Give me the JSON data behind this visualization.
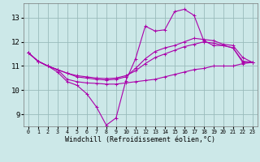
{
  "background_color": "#cce8e8",
  "line_color": "#aa00aa",
  "grid_color": "#99bbbb",
  "xlabel": "Windchill (Refroidissement éolien,°C)",
  "yticks": [
    9,
    10,
    11,
    12,
    13
  ],
  "xticks": [
    0,
    1,
    2,
    3,
    4,
    5,
    6,
    7,
    8,
    9,
    10,
    11,
    12,
    13,
    14,
    15,
    16,
    17,
    18,
    19,
    20,
    21,
    22,
    23
  ],
  "xlim": [
    -0.5,
    23.5
  ],
  "ylim": [
    8.5,
    13.6
  ],
  "figsize": [
    3.2,
    2.0
  ],
  "dpi": 100,
  "series": [
    {
      "x": [
        0,
        1,
        2,
        3,
        4,
        5,
        6,
        7,
        8,
        9,
        10,
        11,
        12,
        13,
        14,
        15,
        16,
        17,
        18,
        19,
        20,
        21,
        22,
        23
      ],
      "y": [
        11.55,
        11.2,
        11.0,
        10.85,
        10.45,
        10.35,
        10.3,
        10.28,
        10.25,
        10.25,
        10.3,
        10.35,
        10.4,
        10.45,
        10.55,
        10.65,
        10.75,
        10.85,
        10.9,
        11.0,
        11.0,
        11.0,
        11.1,
        11.15
      ]
    },
    {
      "x": [
        0,
        1,
        2,
        3,
        4,
        5,
        6,
        7,
        8,
        9,
        10,
        11,
        12,
        13,
        14,
        15,
        16,
        17,
        18,
        19,
        20,
        21,
        22,
        23
      ],
      "y": [
        11.55,
        11.2,
        11.0,
        10.85,
        10.7,
        10.6,
        10.55,
        10.5,
        10.48,
        10.5,
        10.6,
        10.8,
        11.1,
        11.35,
        11.5,
        11.65,
        11.8,
        11.9,
        12.0,
        11.95,
        11.85,
        11.75,
        11.2,
        11.15
      ]
    },
    {
      "x": [
        0,
        1,
        2,
        3,
        4,
        5,
        6,
        7,
        8,
        9,
        10,
        11,
        12,
        13,
        14,
        15,
        16,
        17,
        18,
        19,
        20,
        21,
        22,
        23
      ],
      "y": [
        11.55,
        11.2,
        11.0,
        10.85,
        10.7,
        10.55,
        10.5,
        10.45,
        10.42,
        10.45,
        10.55,
        10.9,
        11.3,
        11.6,
        11.75,
        11.85,
        12.0,
        12.15,
        12.1,
        12.05,
        11.9,
        11.85,
        11.35,
        11.15
      ]
    },
    {
      "x": [
        0,
        1,
        2,
        3,
        4,
        5,
        6,
        7,
        8,
        9,
        10,
        11,
        12,
        13,
        14,
        15,
        16,
        17,
        18,
        19,
        20,
        21,
        22,
        23
      ],
      "y": [
        11.55,
        11.2,
        11.0,
        10.75,
        10.35,
        10.2,
        9.85,
        9.3,
        8.55,
        8.85,
        10.38,
        11.3,
        12.65,
        12.45,
        12.5,
        13.25,
        13.35,
        13.1,
        12.05,
        11.85,
        11.85,
        11.75,
        11.15,
        11.15
      ]
    }
  ]
}
